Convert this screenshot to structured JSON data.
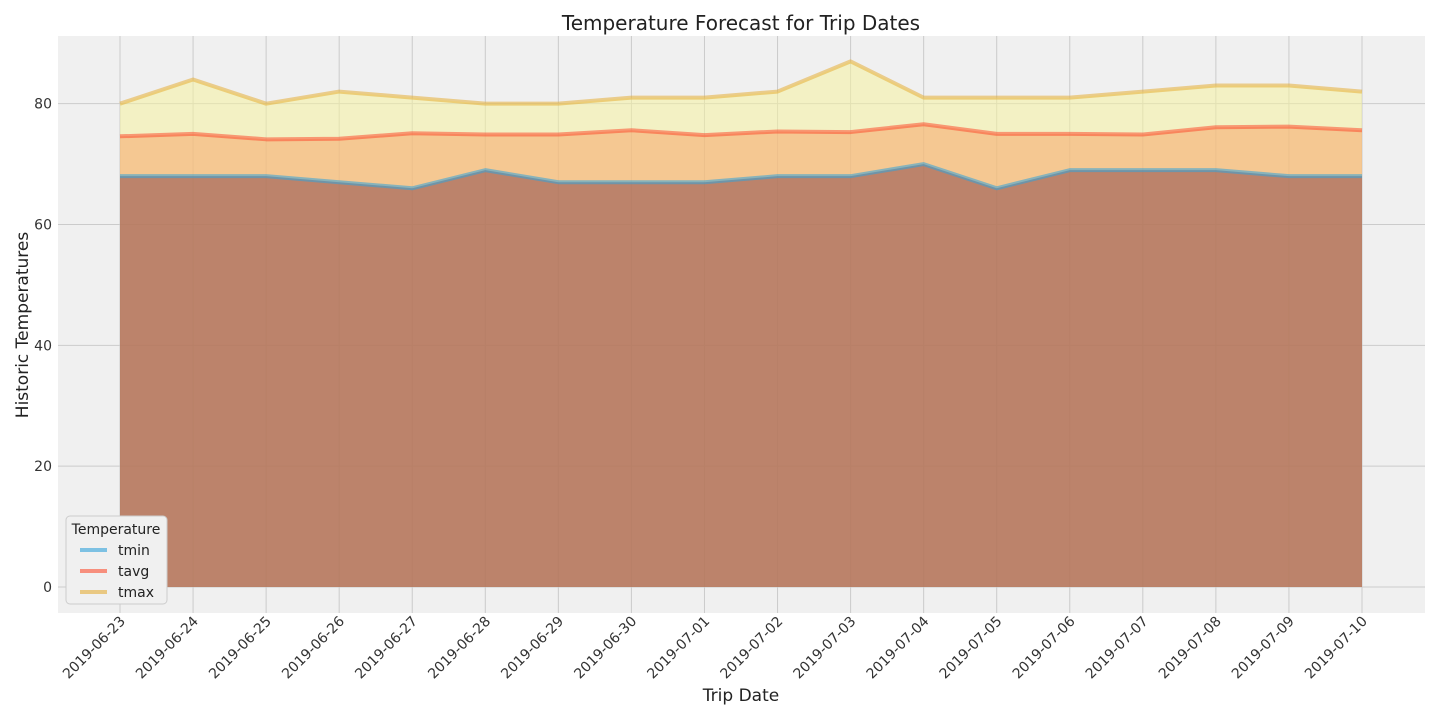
{
  "chart_data": {
    "type": "area",
    "title": "Temperature Forecast for Trip Dates",
    "xlabel": "Trip Date",
    "ylabel": "Historic Temperatures",
    "categories": [
      "2019-06-23",
      "2019-06-24",
      "2019-06-25",
      "2019-06-26",
      "2019-06-27",
      "2019-06-28",
      "2019-06-29",
      "2019-06-30",
      "2019-07-01",
      "2019-07-02",
      "2019-07-03",
      "2019-07-04",
      "2019-07-05",
      "2019-07-06",
      "2019-07-07",
      "2019-07-08",
      "2019-07-09",
      "2019-07-10"
    ],
    "yticks": [
      0,
      20,
      40,
      60,
      80
    ],
    "ylim": [
      -4.3,
      91.2
    ],
    "grid": true,
    "stacked": false,
    "legend": {
      "title": "Temperature",
      "position": "lower-left"
    },
    "series": [
      {
        "name": "tmin",
        "color": "#30a2da",
        "values": [
          68,
          68,
          68,
          67,
          66,
          69,
          67,
          67,
          67,
          68,
          68,
          70,
          66,
          69,
          69,
          69,
          68,
          68
        ]
      },
      {
        "name": "tavg",
        "color": "#fc4f30",
        "values": [
          74.6,
          75.0,
          74.1,
          74.2,
          75.1,
          74.9,
          74.9,
          75.6,
          74.8,
          75.4,
          75.3,
          76.6,
          75.0,
          75.0,
          74.9,
          76.1,
          76.2,
          75.6
        ]
      },
      {
        "name": "tmax",
        "color": "#e5ae38",
        "values": [
          80,
          84,
          80,
          82,
          81,
          80,
          80,
          81,
          81,
          82,
          87,
          81,
          81,
          81,
          82,
          83,
          83,
          82
        ]
      }
    ],
    "fill_colors": {
      "tmin": "#8d4b4b",
      "tavg": "#f5a56a",
      "tmax": "#f5f3a0"
    }
  }
}
